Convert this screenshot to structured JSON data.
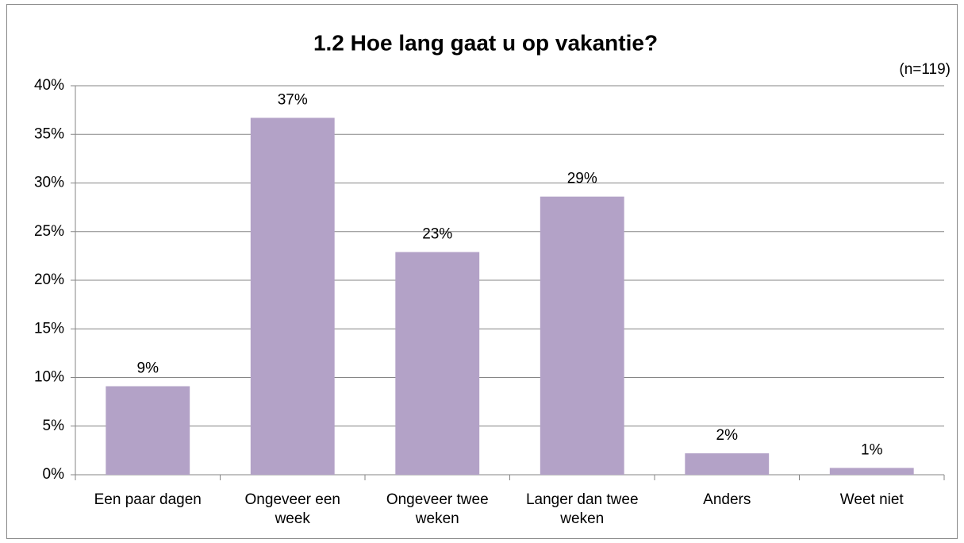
{
  "chart_data": {
    "type": "bar",
    "title": "1.2 Hoe lang gaat u op vakantie?",
    "annotation": "(n=119)",
    "categories": [
      "Een paar dagen",
      "Ongeveer een week",
      "Ongeveer twee weken",
      "Langer dan twee weken",
      "Anders",
      "Weet niet"
    ],
    "values": [
      9.1,
      36.7,
      22.9,
      28.6,
      2.2,
      0.7
    ],
    "value_labels": [
      "9%",
      "37%",
      "23%",
      "29%",
      "2%",
      "1%"
    ],
    "color": "#b3a2c7",
    "ylim": [
      0,
      40
    ],
    "yticks": [
      {
        "value": 0,
        "label": "0%"
      },
      {
        "value": 5,
        "label": "5%"
      },
      {
        "value": 10,
        "label": "10%"
      },
      {
        "value": 15,
        "label": "15%"
      },
      {
        "value": 20,
        "label": "20%"
      },
      {
        "value": 25,
        "label": "25%"
      },
      {
        "value": 30,
        "label": "30%"
      },
      {
        "value": 35,
        "label": "35%"
      },
      {
        "value": 40,
        "label": "40%"
      }
    ],
    "grid": true
  }
}
